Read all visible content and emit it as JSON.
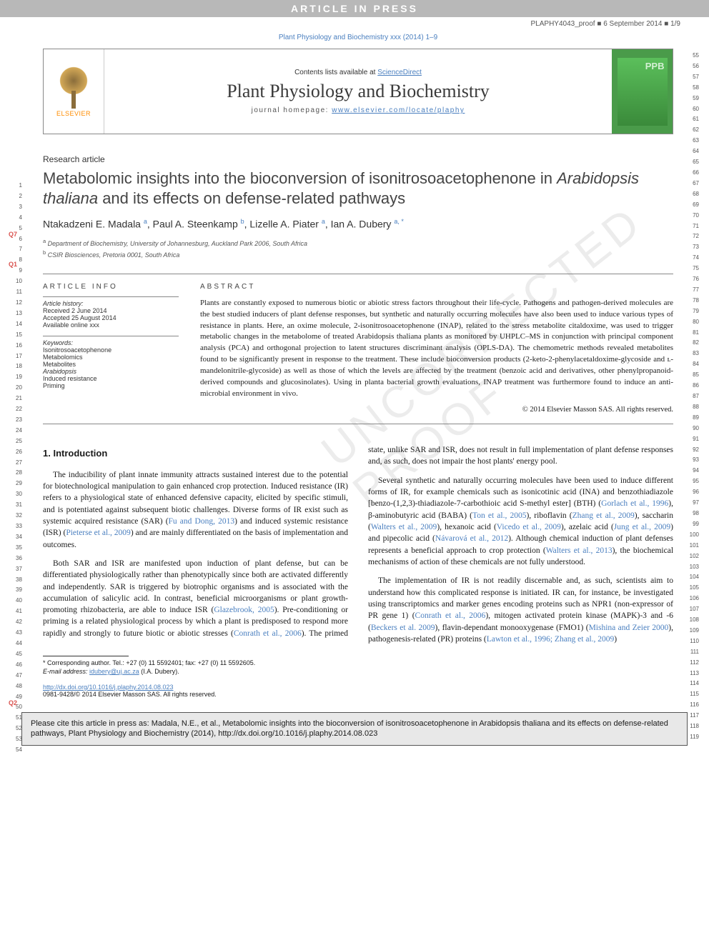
{
  "banner": {
    "text": "ARTICLE IN PRESS"
  },
  "proof": {
    "id": "PLAPHY4043_proof",
    "date": "6 September 2014",
    "pages": "1/9",
    "sep": "■"
  },
  "journal_ref": "Plant Physiology and Biochemistry xxx (2014) 1–9",
  "masthead": {
    "publisher": "ELSEVIER",
    "contents_prefix": "Contents lists available at ",
    "contents_link": "ScienceDirect",
    "journal": "Plant Physiology and Biochemistry",
    "homepage_prefix": "journal homepage: ",
    "homepage_url": "www.elsevier.com/locate/plaphy",
    "cover_label": "PPB"
  },
  "article_type": "Research article",
  "title_parts": {
    "p1": "Metabolomic insights into the bioconversion of isonitrosoacetophenone in ",
    "italic": "Arabidopsis thaliana",
    "p2": " and its effects on defense-related pathways"
  },
  "authors": [
    {
      "name": "Ntakadzeni E. Madala",
      "aff": "a"
    },
    {
      "name": "Paul A. Steenkamp",
      "aff": "b"
    },
    {
      "name": "Lizelle A. Piater",
      "aff": "a"
    },
    {
      "name": "Ian A. Dubery",
      "aff": "a, *"
    }
  ],
  "affiliations": [
    {
      "sup": "a",
      "text": "Department of Biochemistry, University of Johannesburg, Auckland Park 2006, South Africa"
    },
    {
      "sup": "b",
      "text": "CSIR Biosciences, Pretoria 0001, South Africa"
    }
  ],
  "info": {
    "head": "ARTICLE INFO",
    "history_label": "Article history:",
    "received": "Received 2 June 2014",
    "accepted": "Accepted 25 August 2014",
    "online": "Available online xxx",
    "keywords_label": "Keywords:",
    "keywords": [
      "Isonitrosoacetophenone",
      "Metabolomics",
      "Metabolites",
      "Arabidopsis",
      "Induced resistance",
      "Priming"
    ]
  },
  "abstract": {
    "head": "ABSTRACT",
    "text": "Plants are constantly exposed to numerous biotic or abiotic stress factors throughout their life-cycle. Pathogens and pathogen-derived molecules are the best studied inducers of plant defense responses, but synthetic and naturally occurring molecules have also been used to induce various types of resistance in plants. Here, an oxime molecule, 2-isonitrosoacetophenone (INAP), related to the stress metabolite citaldoxime, was used to trigger metabolic changes in the metabolome of treated Arabidopsis thaliana plants as monitored by UHPLC–MS in conjunction with principal component analysis (PCA) and orthogonal projection to latent structures discriminant analysis (OPLS-DA). The chemometric methods revealed metabolites found to be significantly present in response to the treatment. These include bioconversion products (2-keto-2-phenylacetaldoxime-glycoside and ʟ-mandelonitrile-glycoside) as well as those of which the levels are affected by the treatment (benzoic acid and derivatives, other phenylpropanoid-derived compounds and glucosinolates). Using in planta bacterial growth evaluations, INAP treatment was furthermore found to induce an anti-microbial environment in vivo.",
    "copyright": "© 2014 Elsevier Masson SAS. All rights reserved."
  },
  "body": {
    "h1": "1. Introduction",
    "p1a": "The inducibility of plant innate immunity attracts sustained interest due to the potential for biotechnological manipulation to gain enhanced crop protection. Induced resistance (IR) refers to a physiological state of enhanced defensive capacity, elicited by specific stimuli, and is potentiated against subsequent biotic challenges. Diverse forms of IR exist such as systemic acquired resistance (SAR) (",
    "r1": "Fu and Dong, 2013",
    "p1b": ") and induced systemic resistance (ISR) (",
    "r2": "Pieterse et al., 2009",
    "p1c": ") and are mainly differentiated on the basis of implementation and outcomes.",
    "p2a": "Both SAR and ISR are manifested upon induction of plant defense, but can be differentiated physiologically rather than phenotypically since both are activated differently and independently. SAR is triggered by biotrophic organisms and is associated with the accumulation of salicylic acid. In contrast, beneficial microorganisms or plant growth-promoting rhizobacteria, are able to induce ISR (",
    "r3": "Glazebrook, 2005",
    "p2b": "). Pre-conditioning or priming is a related physiological process by which a plant is predisposed to ",
    "p3a": "respond more rapidly and strongly to future biotic or abiotic stresses (",
    "r4": "Conrath et al., 2006",
    "p3b": "). The primed state, unlike SAR and ISR, does not result in full implementation of plant defense responses and, as such, does not impair the host plants' energy pool.",
    "p4a": "Several synthetic and naturally occurring molecules have been used to induce different forms of IR, for example chemicals such as isonicotinic acid (INA) and benzothiadiazole [benzo-(1,2,3)-thiadiazole-7-carbothioic acid S-methyl ester] (BTH) (",
    "r5": "Gorlach et al., 1996",
    "p4b": "), β-aminobutyric acid (BABA) (",
    "r6": "Ton et al., 2005",
    "p4c": "), riboflavin (",
    "r7": "Zhang et al., 2009",
    "p4d": "), saccharin (",
    "r8": "Walters et al., 2009",
    "p4e": "), hexanoic acid (",
    "r9": "Vicedo et al., 2009",
    "p4f": "), azelaic acid (",
    "r10": "Jung et al., 2009",
    "p4g": ") and pipecolic acid (",
    "r11": "Návarová et al., 2012",
    "p4h": "). Although chemical induction of plant defenses represents a beneficial approach to crop protection (",
    "r12": "Walters et al., 2013",
    "p4i": "), the biochemical mechanisms of action of these chemicals are not fully understood.",
    "p5a": "The implementation of IR is not readily discernable and, as such, scientists aim to understand how this complicated response is initiated. IR can, for instance, be investigated using transcriptomics and marker genes encoding proteins such as NPR1 (non-expressor of PR gene 1) (",
    "r13": "Conrath et al., 2006",
    "p5b": "), mitogen activated protein kinase (MAPK)-3 and -6 (",
    "r14": "Beckers et al. 2009",
    "p5c": "), flavin-dependant monooxygenase (FMO1) (",
    "r15": "Mishina and Zeier 2000",
    "p5d": "), pathogenesis-related (PR) proteins (",
    "r16": "Lawton et al., 1996; Zhang et al., 2009",
    "p5e": ")"
  },
  "footnote": {
    "corr": "* Corresponding author. Tel.: +27 (0) 11 5592401; fax: +27 (0) 11 5592605.",
    "email_label": "E-mail address: ",
    "email": "idubery@uj.ac.za",
    "email_suffix": " (I.A. Dubery)."
  },
  "doi": {
    "url": "http://dx.doi.org/10.1016/j.plaphy.2014.08.023",
    "issn": "0981-9428/© 2014 Elsevier Masson SAS. All rights reserved."
  },
  "cite_box": "Please cite this article in press as: Madala, N.E., et al., Metabolomic insights into the bioconversion of isonitrosoacetophenone in Arabidopsis thaliana and its effects on defense-related pathways, Plant Physiology and Biochemistry (2014), http://dx.doi.org/10.1016/j.plaphy.2014.08.023",
  "q_markers": {
    "q7": "Q7",
    "q1": "Q1",
    "q2": "Q2"
  },
  "line_numbers": {
    "left_start": 1,
    "left_end": 54,
    "right_start": 55,
    "right_end": 119
  },
  "watermark": "UNCORRECTED PROOF",
  "colors": {
    "link": "#4a7fbf",
    "banner_bg": "#b8b8b8",
    "q_marker": "#d9534f",
    "cite_bg": "#e8e8e8",
    "cover_bg": "#4a9b4a"
  }
}
